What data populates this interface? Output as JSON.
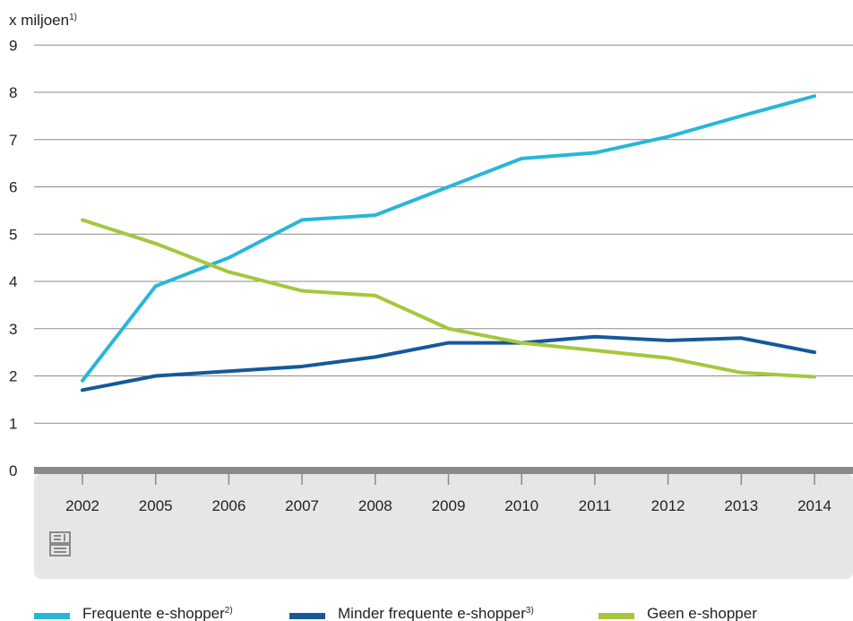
{
  "chart_data": {
    "type": "line",
    "unit_label": "x miljoen",
    "unit_note": "1)",
    "categories": [
      "2002",
      "2005",
      "2006",
      "2007",
      "2008",
      "2009",
      "2010",
      "2011",
      "2012",
      "2013",
      "2014"
    ],
    "yticks": [
      "0",
      "1",
      "2",
      "3",
      "4",
      "5",
      "6",
      "7",
      "8",
      "9"
    ],
    "ylim": [
      0,
      9
    ],
    "grid": true,
    "series": [
      {
        "name": "Frequente e-shopper",
        "note": "2)",
        "color": "#29b6d8",
        "values": [
          1.9,
          3.9,
          4.5,
          5.3,
          5.4,
          6.0,
          6.6,
          6.72,
          7.06,
          7.5,
          7.92
        ]
      },
      {
        "name": "Minder frequente e-shopper",
        "note": "3)",
        "color": "#14599a",
        "values": [
          1.7,
          2.0,
          2.1,
          2.2,
          2.4,
          2.7,
          2.7,
          2.83,
          2.75,
          2.8,
          2.5
        ]
      },
      {
        "name": "Geen e-shopper",
        "note": "",
        "color": "#a5c73c",
        "values": [
          5.3,
          4.8,
          4.2,
          3.8,
          3.7,
          3.0,
          2.7,
          2.54,
          2.38,
          2.07,
          1.98
        ]
      }
    ],
    "legend_position": "bottom"
  },
  "logo": {
    "name": "cbs-logo-icon",
    "text": "cbs"
  }
}
